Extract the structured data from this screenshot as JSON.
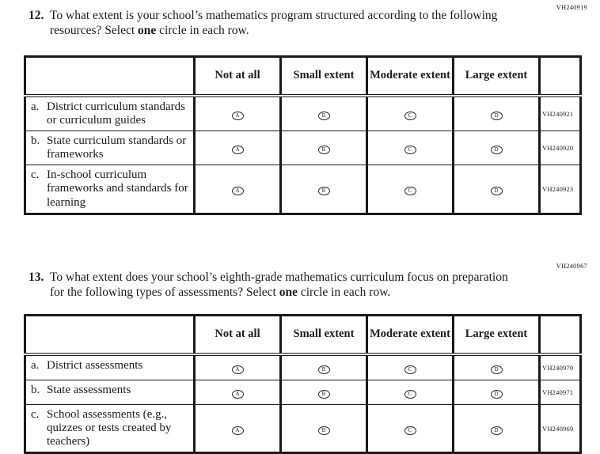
{
  "questions": [
    {
      "number": "12.",
      "code": "VH240919",
      "prompt_prefix": "To what extent is your school’s mathematics program structured according to the following resources? Select ",
      "prompt_bold": "one",
      "prompt_suffix": " circle in each row.",
      "options": [
        "Not at all",
        "Small extent",
        "Moderate extent",
        "Large extent"
      ],
      "rows": [
        {
          "letter": "a.",
          "label": "District curriculum standards or curriculum guides",
          "code": "VH240921"
        },
        {
          "letter": "b.",
          "label": "State curriculum standards or frameworks",
          "code": "VH240920"
        },
        {
          "letter": "c.",
          "label": "In-school curriculum frameworks and standards for learning",
          "code": "VH240923"
        }
      ]
    },
    {
      "number": "13.",
      "code": "VH240967",
      "prompt_prefix": "To what extent does your school’s eighth-grade mathematics curriculum focus on preparation for the following types of assessments? Select ",
      "prompt_bold": "one",
      "prompt_suffix": " circle in each row.",
      "options": [
        "Not at all",
        "Small extent",
        "Moderate extent",
        "Large extent"
      ],
      "rows": [
        {
          "letter": "a.",
          "label": "District assessments",
          "code": "VH240970"
        },
        {
          "letter": "b.",
          "label": "State assessments",
          "code": "VH240971"
        },
        {
          "letter": "c.",
          "label": "School assessments (e.g., quizzes or tests created by teachers)",
          "code": "VH240969"
        }
      ]
    }
  ],
  "circle_letters": [
    "A",
    "B",
    "C",
    "D"
  ],
  "colors": {
    "text": "#1c1c1c",
    "border": "#1a1a1a",
    "background": "#ffffff"
  }
}
